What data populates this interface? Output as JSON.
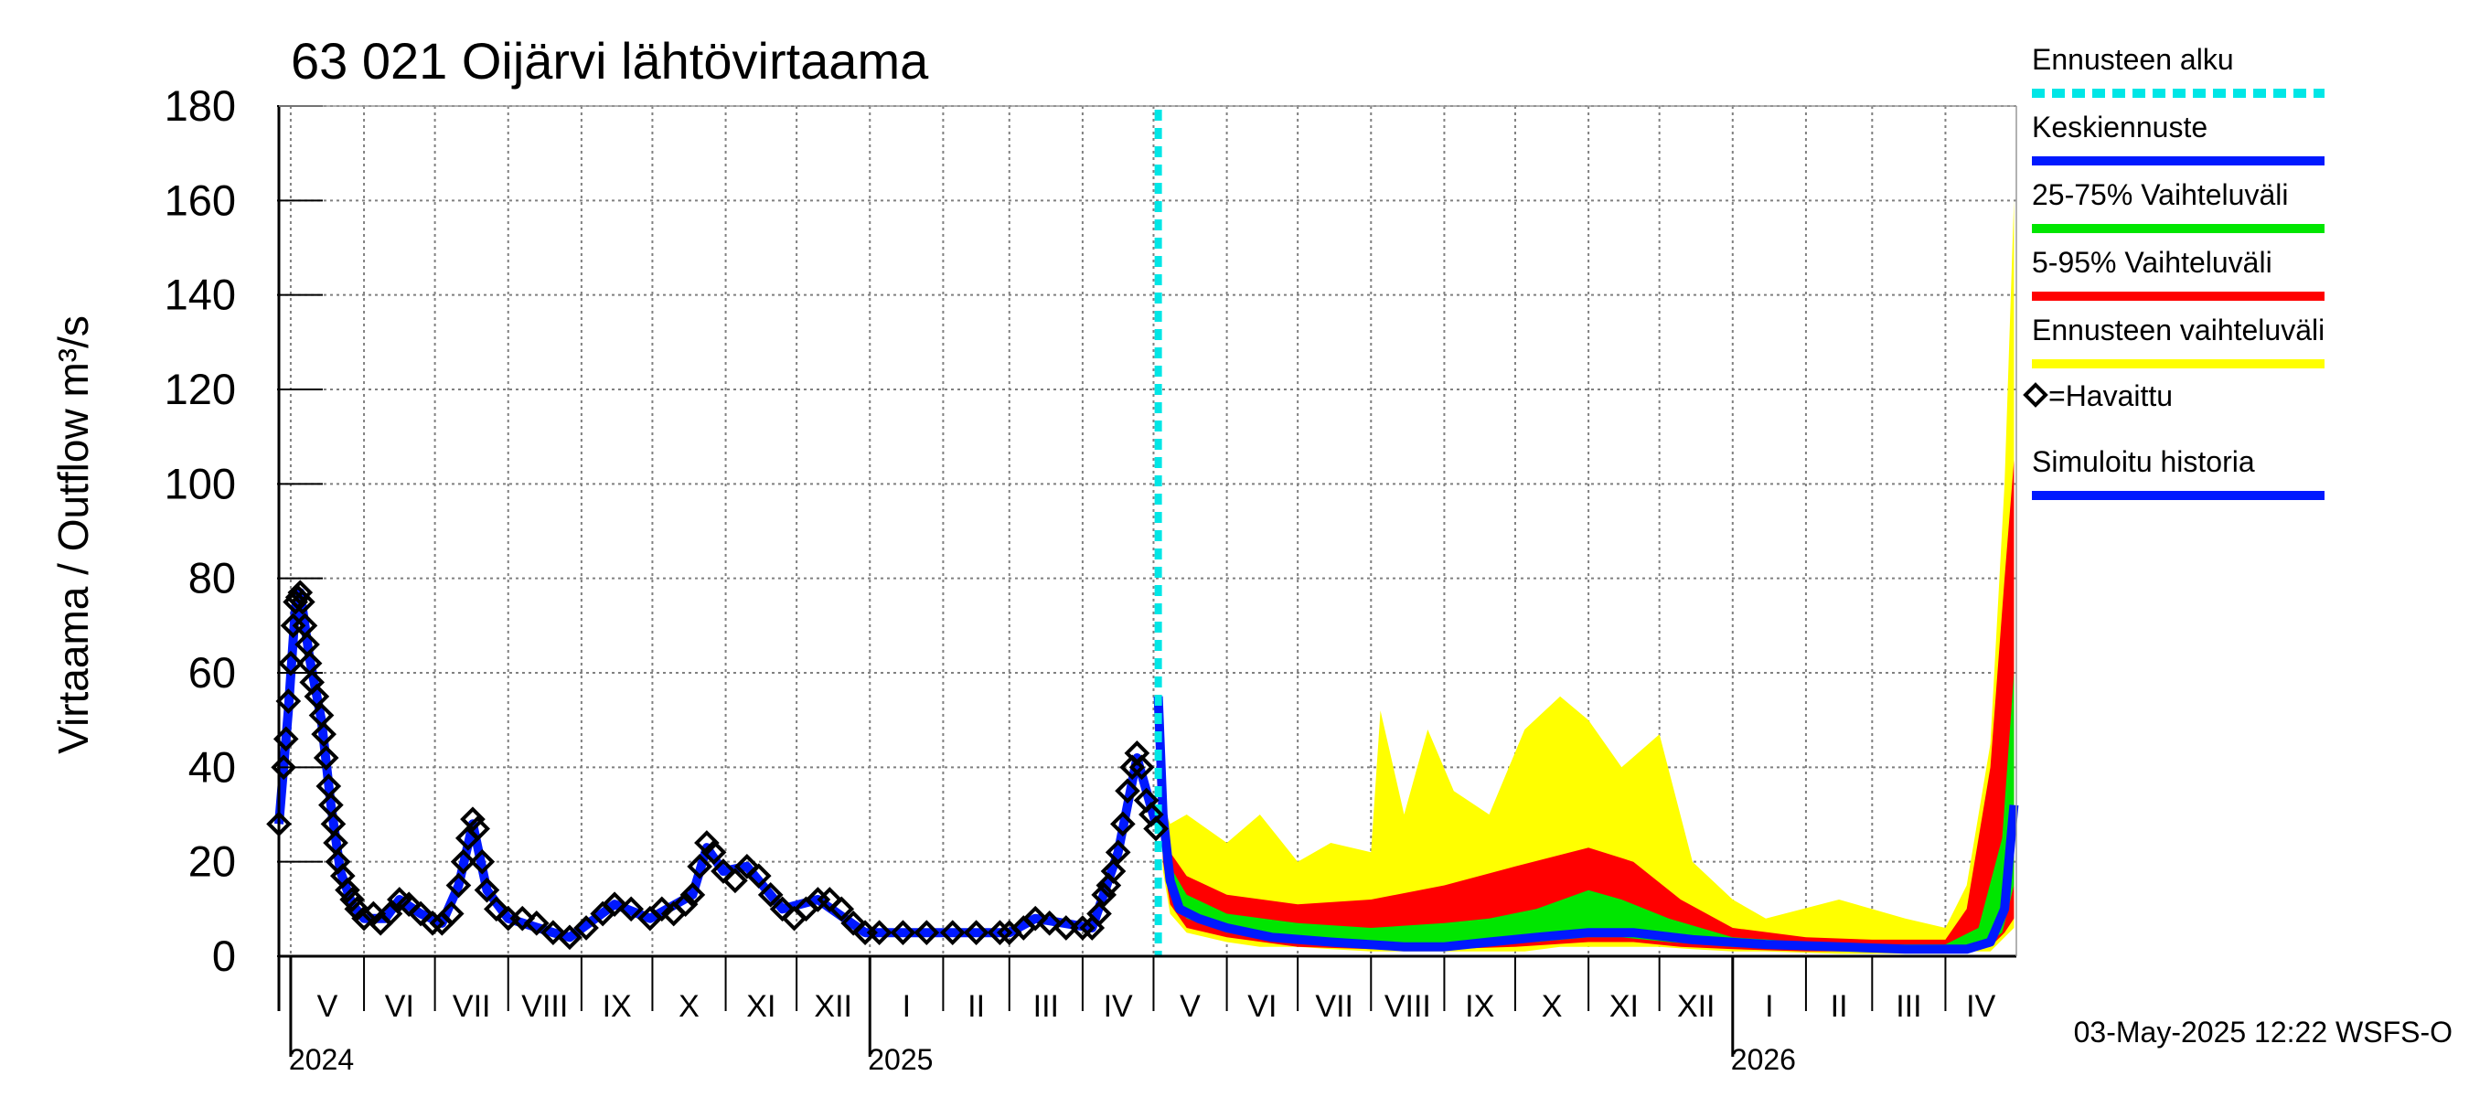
{
  "chart_data": {
    "type": "area",
    "title": "63 021 Oijärvi lähtövirtaama",
    "ylabel": "Virtaama / Outflow    m³/s",
    "ylim": [
      0,
      180
    ],
    "yticks": [
      "0",
      "20",
      "40",
      "60",
      "80",
      "100",
      "120",
      "140",
      "160",
      "180"
    ],
    "x_range": [
      "2024-04-26",
      "2026-05-01"
    ],
    "forecast_start": "2025-05-03",
    "months": [
      {
        "label": "V",
        "date": "2024-05-01"
      },
      {
        "label": "VI",
        "date": "2024-06-01"
      },
      {
        "label": "VII",
        "date": "2024-07-01"
      },
      {
        "label": "VIII",
        "date": "2024-08-01"
      },
      {
        "label": "IX",
        "date": "2024-09-01"
      },
      {
        "label": "X",
        "date": "2024-10-01"
      },
      {
        "label": "XI",
        "date": "2024-11-01"
      },
      {
        "label": "XII",
        "date": "2024-12-01"
      },
      {
        "label": "I",
        "date": "2025-01-01"
      },
      {
        "label": "II",
        "date": "2025-02-01"
      },
      {
        "label": "III",
        "date": "2025-03-01"
      },
      {
        "label": "IV",
        "date": "2025-04-01"
      },
      {
        "label": "V",
        "date": "2025-05-01"
      },
      {
        "label": "VI",
        "date": "2025-06-01"
      },
      {
        "label": "VII",
        "date": "2025-07-01"
      },
      {
        "label": "VIII",
        "date": "2025-08-01"
      },
      {
        "label": "IX",
        "date": "2025-09-01"
      },
      {
        "label": "X",
        "date": "2025-10-01"
      },
      {
        "label": "XI",
        "date": "2025-11-01"
      },
      {
        "label": "XII",
        "date": "2025-12-01"
      },
      {
        "label": "I",
        "date": "2026-01-01"
      },
      {
        "label": "II",
        "date": "2026-02-01"
      },
      {
        "label": "III",
        "date": "2026-03-01"
      },
      {
        "label": "IV",
        "date": "2026-04-01"
      }
    ],
    "years": [
      {
        "label": "2024",
        "date": "2024-05-01"
      },
      {
        "label": "2025",
        "date": "2025-01-01"
      },
      {
        "label": "2026",
        "date": "2026-01-01"
      }
    ],
    "observed": [
      [
        "2024-04-26",
        28
      ],
      [
        "2024-04-28",
        40
      ],
      [
        "2024-04-29",
        46
      ],
      [
        "2024-04-30",
        54
      ],
      [
        "2024-05-01",
        62
      ],
      [
        "2024-05-02",
        70
      ],
      [
        "2024-05-03",
        75
      ],
      [
        "2024-05-04",
        76
      ],
      [
        "2024-05-05",
        77
      ],
      [
        "2024-05-06",
        75
      ],
      [
        "2024-05-07",
        70
      ],
      [
        "2024-05-08",
        66
      ],
      [
        "2024-05-09",
        62
      ],
      [
        "2024-05-10",
        58
      ],
      [
        "2024-05-12",
        55
      ],
      [
        "2024-05-14",
        51
      ],
      [
        "2024-05-15",
        47
      ],
      [
        "2024-05-16",
        42
      ],
      [
        "2024-05-17",
        36
      ],
      [
        "2024-05-18",
        32
      ],
      [
        "2024-05-19",
        28
      ],
      [
        "2024-05-20",
        24
      ],
      [
        "2024-05-21",
        20
      ],
      [
        "2024-05-23",
        17
      ],
      [
        "2024-05-25",
        14
      ],
      [
        "2024-05-27",
        12
      ],
      [
        "2024-05-29",
        10
      ],
      [
        "2024-06-01",
        8
      ],
      [
        "2024-06-05",
        9
      ],
      [
        "2024-06-08",
        7
      ],
      [
        "2024-06-12",
        9
      ],
      [
        "2024-06-16",
        12
      ],
      [
        "2024-06-20",
        11
      ],
      [
        "2024-06-25",
        9
      ],
      [
        "2024-06-30",
        7
      ],
      [
        "2024-07-04",
        7
      ],
      [
        "2024-07-08",
        9
      ],
      [
        "2024-07-11",
        15
      ],
      [
        "2024-07-13",
        20
      ],
      [
        "2024-07-15",
        25
      ],
      [
        "2024-07-17",
        29
      ],
      [
        "2024-07-19",
        27
      ],
      [
        "2024-07-21",
        20
      ],
      [
        "2024-07-23",
        14
      ],
      [
        "2024-07-27",
        10
      ],
      [
        "2024-08-01",
        8
      ],
      [
        "2024-08-07",
        8
      ],
      [
        "2024-08-13",
        7
      ],
      [
        "2024-08-20",
        5
      ],
      [
        "2024-08-27",
        4
      ],
      [
        "2024-09-03",
        6
      ],
      [
        "2024-09-10",
        9
      ],
      [
        "2024-09-15",
        11
      ],
      [
        "2024-09-22",
        10
      ],
      [
        "2024-09-30",
        8
      ],
      [
        "2024-10-05",
        10
      ],
      [
        "2024-10-10",
        9
      ],
      [
        "2024-10-15",
        11
      ],
      [
        "2024-10-18",
        13
      ],
      [
        "2024-10-21",
        19
      ],
      [
        "2024-10-24",
        24
      ],
      [
        "2024-10-27",
        22
      ],
      [
        "2024-10-31",
        18
      ],
      [
        "2024-11-05",
        16
      ],
      [
        "2024-11-10",
        19
      ],
      [
        "2024-11-15",
        17
      ],
      [
        "2024-11-20",
        13
      ],
      [
        "2024-11-25",
        10
      ],
      [
        "2024-11-30",
        8
      ],
      [
        "2024-12-05",
        10
      ],
      [
        "2024-12-10",
        12
      ],
      [
        "2024-12-15",
        12
      ],
      [
        "2024-12-20",
        10
      ],
      [
        "2024-12-25",
        7
      ],
      [
        "2024-12-30",
        5
      ],
      [
        "2025-01-05",
        5
      ],
      [
        "2025-01-15",
        5
      ],
      [
        "2025-01-25",
        5
      ],
      [
        "2025-02-05",
        5
      ],
      [
        "2025-02-15",
        5
      ],
      [
        "2025-02-25",
        5
      ],
      [
        "2025-03-01",
        5
      ],
      [
        "2025-03-07",
        6
      ],
      [
        "2025-03-12",
        8
      ],
      [
        "2025-03-18",
        7
      ],
      [
        "2025-03-25",
        6
      ],
      [
        "2025-04-01",
        6
      ],
      [
        "2025-04-05",
        6
      ],
      [
        "2025-04-08",
        9
      ],
      [
        "2025-04-10",
        13
      ],
      [
        "2025-04-12",
        15
      ],
      [
        "2025-04-14",
        18
      ],
      [
        "2025-04-16",
        22
      ],
      [
        "2025-04-18",
        28
      ],
      [
        "2025-04-20",
        35
      ],
      [
        "2025-04-22",
        40
      ],
      [
        "2025-04-24",
        43
      ],
      [
        "2025-04-26",
        40
      ],
      [
        "2025-04-28",
        33
      ],
      [
        "2025-04-30",
        30
      ],
      [
        "2025-05-02",
        27
      ]
    ],
    "simulated_history": [
      [
        "2024-04-26",
        28
      ],
      [
        "2024-04-30",
        52
      ],
      [
        "2024-05-03",
        74
      ],
      [
        "2024-05-05",
        77
      ],
      [
        "2024-05-09",
        63
      ],
      [
        "2024-05-14",
        50
      ],
      [
        "2024-05-18",
        32
      ],
      [
        "2024-05-22",
        18
      ],
      [
        "2024-05-27",
        11
      ],
      [
        "2024-06-01",
        8
      ],
      [
        "2024-06-10",
        8
      ],
      [
        "2024-06-16",
        12
      ],
      [
        "2024-06-25",
        9
      ],
      [
        "2024-07-04",
        7
      ],
      [
        "2024-07-11",
        15
      ],
      [
        "2024-07-17",
        28
      ],
      [
        "2024-07-23",
        14
      ],
      [
        "2024-08-01",
        8
      ],
      [
        "2024-08-20",
        5
      ],
      [
        "2024-08-27",
        4
      ],
      [
        "2024-09-15",
        11
      ],
      [
        "2024-09-30",
        8
      ],
      [
        "2024-10-18",
        13
      ],
      [
        "2024-10-24",
        23
      ],
      [
        "2024-10-31",
        18
      ],
      [
        "2024-11-10",
        19
      ],
      [
        "2024-11-25",
        10
      ],
      [
        "2024-12-10",
        12
      ],
      [
        "2024-12-30",
        5
      ],
      [
        "2025-03-01",
        5
      ],
      [
        "2025-03-12",
        8
      ],
      [
        "2025-04-05",
        6
      ],
      [
        "2025-04-16",
        22
      ],
      [
        "2025-04-24",
        42
      ],
      [
        "2025-05-02",
        28
      ]
    ],
    "median_forecast": [
      [
        "2025-05-03",
        55
      ],
      [
        "2025-05-05",
        30
      ],
      [
        "2025-05-08",
        16
      ],
      [
        "2025-05-12",
        10
      ],
      [
        "2025-05-20",
        8
      ],
      [
        "2025-06-01",
        6
      ],
      [
        "2025-06-20",
        4
      ],
      [
        "2025-07-15",
        3
      ],
      [
        "2025-08-15",
        2
      ],
      [
        "2025-09-01",
        2
      ],
      [
        "2025-09-20",
        3
      ],
      [
        "2025-10-10",
        4
      ],
      [
        "2025-11-01",
        5
      ],
      [
        "2025-11-20",
        5
      ],
      [
        "2025-12-15",
        3.5
      ],
      [
        "2026-01-15",
        2.5
      ],
      [
        "2026-02-15",
        2
      ],
      [
        "2026-03-15",
        1.5
      ],
      [
        "2026-04-10",
        1.5
      ],
      [
        "2026-04-20",
        3
      ],
      [
        "2026-04-26",
        10
      ],
      [
        "2026-04-30",
        32
      ]
    ],
    "band_25_75": [
      [
        "2025-05-03",
        55,
        55
      ],
      [
        "2025-05-05",
        24,
        34
      ],
      [
        "2025-05-08",
        13,
        19
      ],
      [
        "2025-05-15",
        8,
        13
      ],
      [
        "2025-06-01",
        5,
        9
      ],
      [
        "2025-07-01",
        3,
        7
      ],
      [
        "2025-08-01",
        2,
        6
      ],
      [
        "2025-09-01",
        2,
        7
      ],
      [
        "2025-09-20",
        3,
        8
      ],
      [
        "2025-10-10",
        3,
        10
      ],
      [
        "2025-11-01",
        4,
        14
      ],
      [
        "2025-11-15",
        4,
        12
      ],
      [
        "2025-12-05",
        3,
        8
      ],
      [
        "2026-01-01",
        2,
        4
      ],
      [
        "2026-02-01",
        1.5,
        3
      ],
      [
        "2026-03-01",
        1.2,
        2.5
      ],
      [
        "2026-04-01",
        1.2,
        2.5
      ],
      [
        "2026-04-15",
        1.5,
        6
      ],
      [
        "2026-04-25",
        5,
        25
      ],
      [
        "2026-04-30",
        15,
        60
      ]
    ],
    "band_5_95": [
      [
        "2025-05-03",
        55,
        55
      ],
      [
        "2025-05-05",
        20,
        40
      ],
      [
        "2025-05-08",
        11,
        22
      ],
      [
        "2025-05-15",
        6,
        17
      ],
      [
        "2025-06-01",
        4,
        13
      ],
      [
        "2025-07-01",
        2,
        11
      ],
      [
        "2025-08-01",
        1.5,
        12
      ],
      [
        "2025-09-01",
        1.5,
        15
      ],
      [
        "2025-10-01",
        2,
        19
      ],
      [
        "2025-11-01",
        3,
        23
      ],
      [
        "2025-11-20",
        3,
        20
      ],
      [
        "2025-12-10",
        2,
        12
      ],
      [
        "2026-01-01",
        1.5,
        6
      ],
      [
        "2026-02-01",
        1,
        4
      ],
      [
        "2026-03-01",
        1,
        3.5
      ],
      [
        "2026-04-01",
        1,
        3.5
      ],
      [
        "2026-04-10",
        1.2,
        10
      ],
      [
        "2026-04-20",
        2,
        40
      ],
      [
        "2026-04-26",
        5,
        80
      ],
      [
        "2026-04-30",
        8,
        105
      ]
    ],
    "band_full": [
      [
        "2025-05-03",
        55,
        55
      ],
      [
        "2025-05-05",
        18,
        32
      ],
      [
        "2025-05-08",
        9,
        28
      ],
      [
        "2025-05-15",
        5,
        30
      ],
      [
        "2025-06-01",
        3,
        24
      ],
      [
        "2025-06-15",
        2,
        30
      ],
      [
        "2025-07-01",
        2,
        20
      ],
      [
        "2025-07-15",
        1.5,
        24
      ],
      [
        "2025-08-01",
        1,
        22
      ],
      [
        "2025-08-05",
        1,
        52
      ],
      [
        "2025-08-15",
        1,
        30
      ],
      [
        "2025-08-25",
        1,
        48
      ],
      [
        "2025-09-05",
        1,
        35
      ],
      [
        "2025-09-20",
        1,
        30
      ],
      [
        "2025-10-05",
        1,
        48
      ],
      [
        "2025-10-20",
        2,
        55
      ],
      [
        "2025-11-01",
        2,
        50
      ],
      [
        "2025-11-15",
        2,
        40
      ],
      [
        "2025-12-01",
        2,
        47
      ],
      [
        "2025-12-15",
        1.5,
        20
      ],
      [
        "2026-01-01",
        1,
        12
      ],
      [
        "2026-01-15",
        1,
        8
      ],
      [
        "2026-02-15",
        0.5,
        12
      ],
      [
        "2026-03-15",
        0.5,
        8
      ],
      [
        "2026-04-01",
        0.5,
        6
      ],
      [
        "2026-04-10",
        1,
        15
      ],
      [
        "2026-04-20",
        1,
        45
      ],
      [
        "2026-04-26",
        4,
        100
      ],
      [
        "2026-04-30",
        6,
        160
      ]
    ],
    "legend": [
      {
        "label": "Ennusteen alku",
        "color": "#00e6e6",
        "style": "dashed-line"
      },
      {
        "label": "Keskiennuste",
        "color": "#0019ff",
        "style": "line"
      },
      {
        "label": "25-75% Vaihteluväli",
        "color": "#00e600",
        "style": "line"
      },
      {
        "label": "5-95% Vaihteluväli",
        "color": "#ff0000",
        "style": "line"
      },
      {
        "label": "Ennusteen vaihteluväli",
        "color": "#ffff00",
        "style": "line"
      },
      {
        "label": "=Havaittu",
        "color": "#000000",
        "style": "diamond"
      },
      {
        "label": "Simuloitu historia",
        "color": "#0019ff",
        "style": "line"
      }
    ],
    "timestamp": "03-May-2025 12:22 WSFS-O"
  },
  "colors": {
    "full_band": "#ffff00",
    "band_5_95": "#ff0000",
    "band_25_75": "#00e600",
    "median": "#0019ff",
    "simulated": "#0019ff",
    "forecast_start": "#00e6e6",
    "observed": "#000000",
    "grid": "#808080"
  }
}
